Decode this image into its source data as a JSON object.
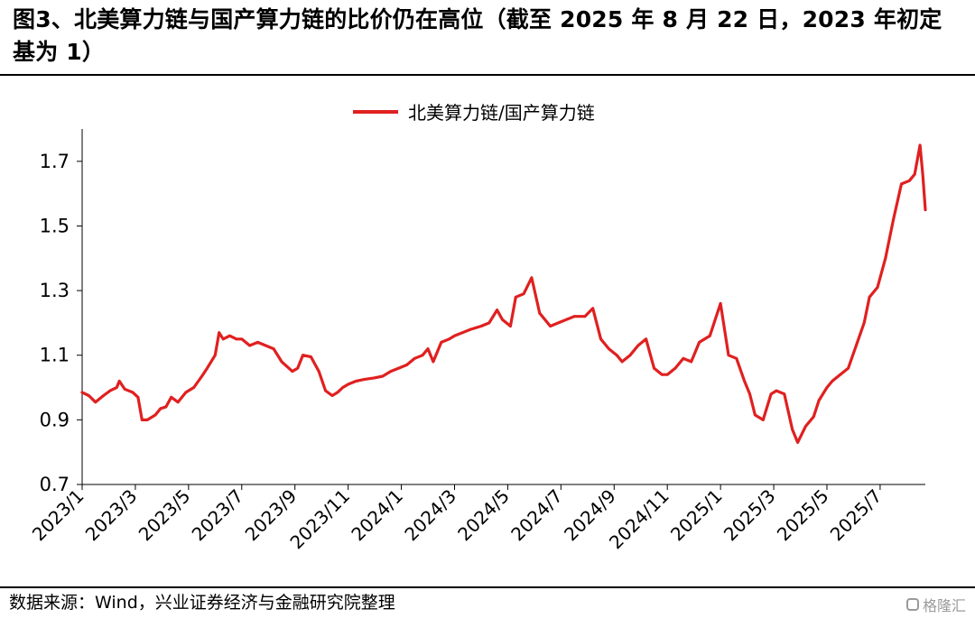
{
  "title": "图3、北美算力链与国产算力链的比价仍在高位（截至 2025 年 8 月 22 日，2023 年初定基为 1）",
  "source": "数据来源：Wind，兴业证券经济与金融研究院整理",
  "watermark": "格隆汇",
  "colors": {
    "series": "#e02020",
    "axis": "#000000",
    "rule": "#000000"
  },
  "chart_data": {
    "type": "line",
    "title": "",
    "xlabel": "",
    "ylabel": "",
    "ylim": [
      0.7,
      1.8
    ],
    "yticks": [
      0.7,
      0.9,
      1.1,
      1.3,
      1.5,
      1.7
    ],
    "ytick_labels": [
      "0.7",
      "0.9",
      "1.1",
      "1.3",
      "1.5",
      "1.7"
    ],
    "xlim": [
      0,
      31.7
    ],
    "xticks": [
      0,
      2,
      4,
      6,
      8,
      10,
      12,
      14,
      16,
      18,
      20,
      22,
      24,
      26,
      28,
      30
    ],
    "xtick_labels": [
      "2023/1",
      "2023/3",
      "2023/5",
      "2023/7",
      "2023/9",
      "2023/11",
      "2024/1",
      "2024/3",
      "2024/5",
      "2024/7",
      "2024/9",
      "2024/11",
      "2025/1",
      "2025/3",
      "2025/5",
      "2025/7"
    ],
    "legend": {
      "position": "top-center"
    },
    "grid": false,
    "series": [
      {
        "name": "北美算力链/国产算力链",
        "x_unit": "months since 2023/1",
        "x": [
          0,
          0.25,
          0.5,
          0.8,
          1.05,
          1.3,
          1.4,
          1.6,
          1.9,
          2.1,
          2.25,
          2.45,
          2.75,
          2.95,
          3.15,
          3.35,
          3.6,
          3.9,
          4.2,
          4.5,
          4.7,
          5.0,
          5.15,
          5.3,
          5.55,
          5.8,
          6.0,
          6.3,
          6.6,
          6.9,
          7.2,
          7.5,
          7.9,
          8.1,
          8.3,
          8.6,
          8.9,
          9.15,
          9.4,
          9.6,
          9.8,
          10.0,
          10.3,
          10.6,
          11.0,
          11.3,
          11.6,
          11.9,
          12.2,
          12.5,
          12.8,
          13.0,
          13.2,
          13.5,
          13.8,
          14.0,
          14.3,
          14.6,
          15.0,
          15.3,
          15.6,
          15.8,
          16.1,
          16.3,
          16.6,
          16.9,
          17.2,
          17.6,
          17.9,
          18.2,
          18.5,
          18.9,
          19.2,
          19.5,
          19.8,
          20.1,
          20.3,
          20.6,
          20.9,
          21.2,
          21.5,
          21.8,
          22.0,
          22.3,
          22.6,
          22.9,
          23.2,
          23.6,
          24.0,
          24.3,
          24.6,
          24.9,
          25.1,
          25.3,
          25.6,
          25.9,
          26.1,
          26.4,
          26.7,
          26.9,
          27.2,
          27.5,
          27.7,
          28.0,
          28.2,
          28.5,
          28.8,
          29.1,
          29.4,
          29.6,
          29.9,
          30.2,
          30.5,
          30.8,
          31.1,
          31.3,
          31.5,
          31.6,
          31.7
        ],
        "values": [
          0.985,
          0.975,
          0.955,
          0.975,
          0.99,
          1.0,
          1.02,
          0.995,
          0.985,
          0.97,
          0.9,
          0.9,
          0.915,
          0.935,
          0.94,
          0.97,
          0.955,
          0.985,
          1.0,
          1.035,
          1.06,
          1.1,
          1.17,
          1.15,
          1.16,
          1.15,
          1.15,
          1.13,
          1.14,
          1.13,
          1.12,
          1.08,
          1.05,
          1.06,
          1.1,
          1.095,
          1.05,
          0.99,
          0.975,
          0.985,
          1.0,
          1.01,
          1.02,
          1.025,
          1.03,
          1.035,
          1.05,
          1.06,
          1.07,
          1.09,
          1.1,
          1.12,
          1.08,
          1.14,
          1.15,
          1.16,
          1.17,
          1.18,
          1.19,
          1.2,
          1.24,
          1.21,
          1.19,
          1.28,
          1.29,
          1.34,
          1.23,
          1.19,
          1.2,
          1.21,
          1.22,
          1.22,
          1.245,
          1.15,
          1.12,
          1.1,
          1.08,
          1.1,
          1.13,
          1.15,
          1.06,
          1.04,
          1.04,
          1.06,
          1.09,
          1.08,
          1.14,
          1.16,
          1.26,
          1.1,
          1.09,
          1.02,
          0.98,
          0.915,
          0.9,
          0.98,
          0.99,
          0.98,
          0.87,
          0.83,
          0.88,
          0.91,
          0.96,
          1.0,
          1.02,
          1.04,
          1.06,
          1.13,
          1.2,
          1.28,
          1.31,
          1.4,
          1.52,
          1.63,
          1.64,
          1.66,
          1.75,
          1.66,
          1.55
        ]
      }
    ]
  }
}
